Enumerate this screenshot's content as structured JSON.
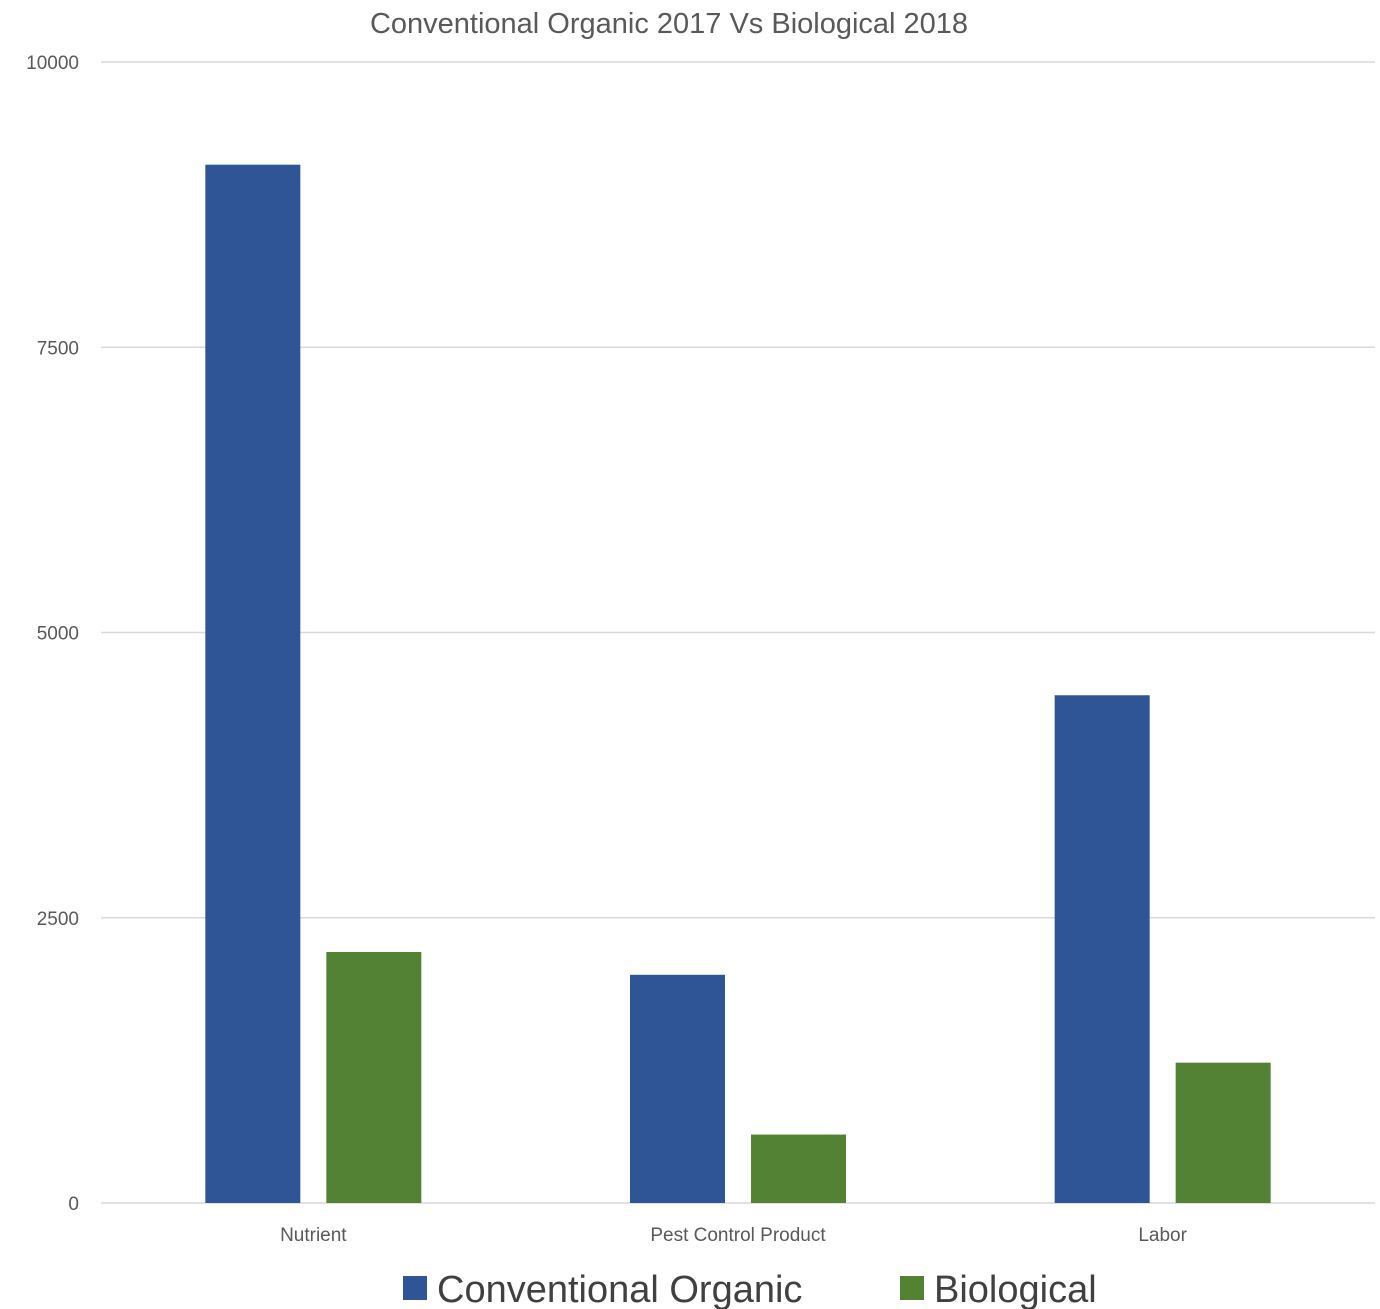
{
  "chart_data": {
    "type": "bar",
    "title": "Conventional Organic 2017 Vs Biological 2018",
    "xlabel": "",
    "ylabel": "",
    "categories": [
      "Nutrient",
      "Pest Control Product",
      "Labor"
    ],
    "series": [
      {
        "name": "Conventional Organic",
        "color": "#2f5597",
        "values": [
          9100,
          2000,
          4450
        ]
      },
      {
        "name": "Biological",
        "color": "#548235",
        "values": [
          2200,
          600,
          1230
        ]
      }
    ],
    "ylim": [
      0,
      10000
    ],
    "yticks": [
      "0",
      "2500",
      "5000",
      "7500",
      "10000"
    ],
    "grid": true,
    "legend_position": "bottom"
  }
}
